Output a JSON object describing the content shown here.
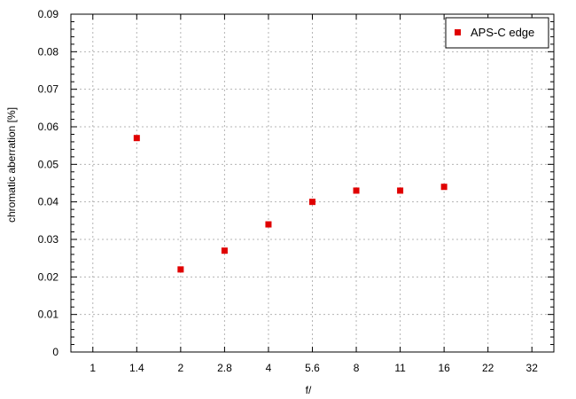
{
  "chart_data": {
    "type": "scatter",
    "title": "",
    "xlabel": "f/",
    "ylabel": "chromatic  aberration [%]",
    "x_ticks": [
      "1",
      "1.4",
      "2",
      "2.8",
      "4",
      "5.6",
      "8",
      "11",
      "16",
      "22",
      "32"
    ],
    "ylim": [
      0,
      0.09
    ],
    "y_ticks": [
      "0",
      "0.01",
      "0.02",
      "0.03",
      "0.04",
      "0.05",
      "0.06",
      "0.07",
      "0.08",
      "0.09"
    ],
    "grid": true,
    "legend_position": "top-right",
    "series": [
      {
        "name": "APS-C edge",
        "color": "#e00000",
        "marker": "square",
        "x": [
          "1.4",
          "2",
          "2.8",
          "4",
          "5.6",
          "8",
          "11",
          "16"
        ],
        "y": [
          0.057,
          0.022,
          0.027,
          0.034,
          0.04,
          0.043,
          0.043,
          0.044
        ]
      }
    ]
  }
}
